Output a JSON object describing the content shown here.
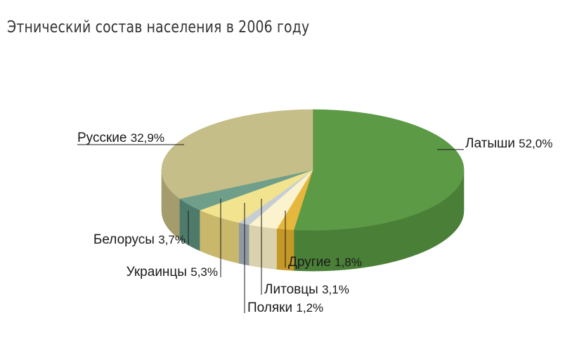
{
  "chart_data": {
    "type": "pie",
    "title": "Этнический состав населения в 2006 году",
    "unit": "%",
    "slices": [
      {
        "label": "Латыши",
        "value": 52.0,
        "value_label": "52,0%",
        "color": "#5c9a46",
        "side_color": "#4a7f37"
      },
      {
        "label": "Другие",
        "value": 1.8,
        "value_label": "1,8%",
        "color": "#e6b73d",
        "side_color": "#c49827"
      },
      {
        "label": "Литовцы",
        "value": 3.1,
        "value_label": "3,1%",
        "color": "#fbf3cd",
        "side_color": "#d9d2ad"
      },
      {
        "label": "Поляки",
        "value": 1.2,
        "value_label": "1,2%",
        "color": "#c7ced3",
        "side_color": "#8f9aa2"
      },
      {
        "label": "Украинцы",
        "value": 5.3,
        "value_label": "5,3%",
        "color": "#f2e48e",
        "side_color": "#c9b86b"
      },
      {
        "label": "Белорусы",
        "value": 3.7,
        "value_label": "3,7%",
        "color": "#6f9f8a",
        "side_color": "#4e7a6b"
      },
      {
        "label": "Русские",
        "value": 32.9,
        "value_label": "32,9%",
        "color": "#c6be88",
        "side_color": "#a49c6d"
      }
    ]
  }
}
